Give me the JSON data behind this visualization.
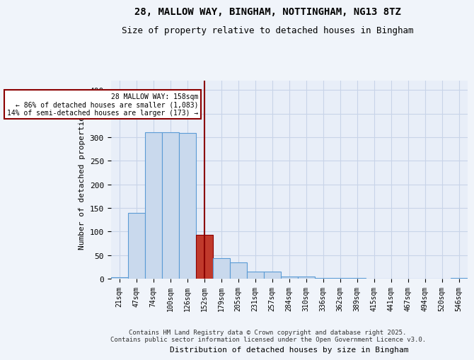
{
  "title": "28, MALLOW WAY, BINGHAM, NOTTINGHAM, NG13 8TZ",
  "subtitle": "Size of property relative to detached houses in Bingham",
  "xlabel": "Distribution of detached houses by size in Bingham",
  "ylabel": "Number of detached properties",
  "bar_labels": [
    "21sqm",
    "47sqm",
    "74sqm",
    "100sqm",
    "126sqm",
    "152sqm",
    "179sqm",
    "205sqm",
    "231sqm",
    "257sqm",
    "284sqm",
    "310sqm",
    "336sqm",
    "362sqm",
    "389sqm",
    "415sqm",
    "441sqm",
    "467sqm",
    "494sqm",
    "520sqm",
    "546sqm"
  ],
  "bar_values": [
    3,
    140,
    311,
    311,
    309,
    93,
    44,
    34,
    15,
    15,
    5,
    5,
    1,
    1,
    1,
    0,
    0,
    0,
    0,
    0,
    2
  ],
  "bar_color": "#c9d9ed",
  "bar_edge_color": "#5b9bd5",
  "highlight_bar_index": 5,
  "highlight_bar_color": "#c0392b",
  "highlight_bar_edge": "#8b0000",
  "vline_color": "#8b0000",
  "annotation_text": "28 MALLOW WAY: 158sqm\n← 86% of detached houses are smaller (1,083)\n14% of semi-detached houses are larger (173) →",
  "annotation_box_color": "#ffffff",
  "annotation_edge_color": "#8b0000",
  "ylim": [
    0,
    420
  ],
  "yticks": [
    0,
    50,
    100,
    150,
    200,
    250,
    300,
    350,
    400
  ],
  "grid_color": "#c8d4e8",
  "background_color": "#e8eef8",
  "fig_background": "#f0f4fa",
  "footer_line1": "Contains HM Land Registry data © Crown copyright and database right 2025.",
  "footer_line2": "Contains public sector information licensed under the Open Government Licence v3.0."
}
